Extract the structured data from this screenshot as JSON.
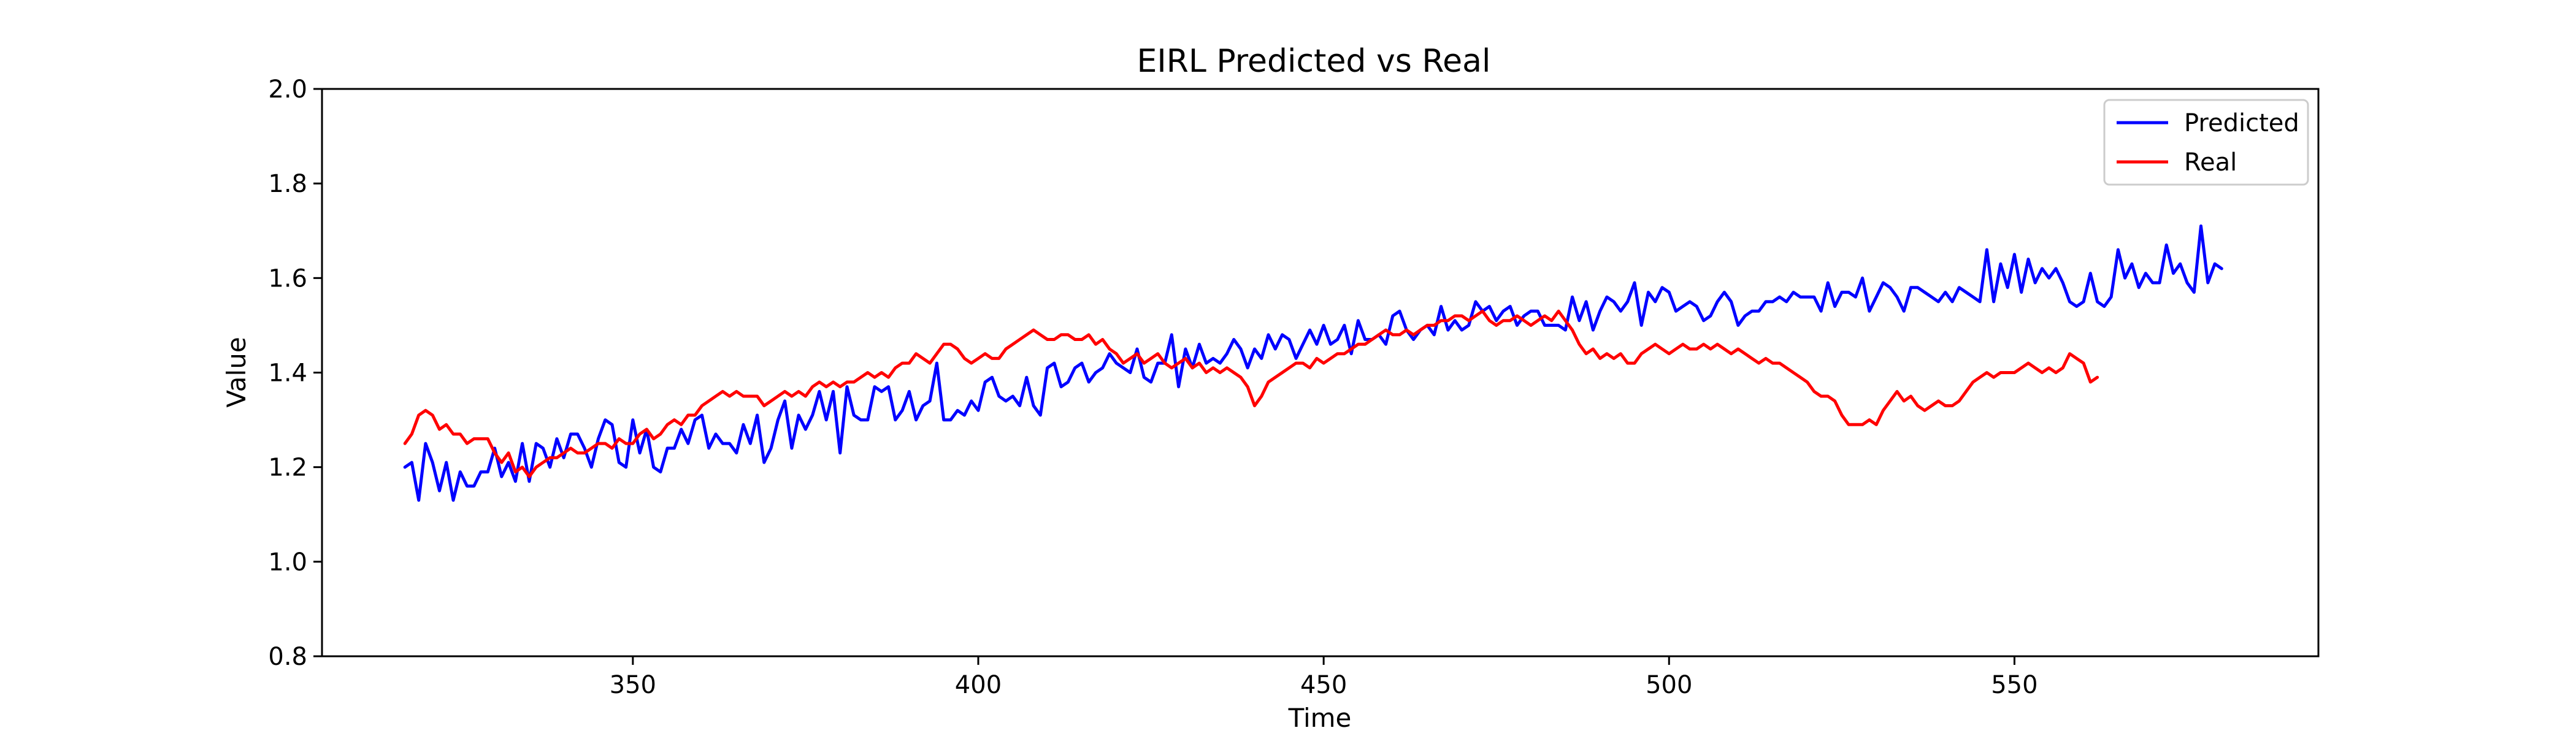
{
  "chart_data": {
    "type": "line",
    "title": "EIRL Predicted vs Real",
    "xlabel": "Time",
    "ylabel": "Value",
    "xlim": [
      305,
      594
    ],
    "ylim": [
      0.8,
      2.0
    ],
    "xticks": [
      350,
      400,
      450,
      500,
      550
    ],
    "yticks": [
      0.8,
      1.0,
      1.2,
      1.4,
      1.6,
      1.8,
      2.0
    ],
    "xtick_labels": [
      "350",
      "400",
      "450",
      "500",
      "550"
    ],
    "ytick_labels": [
      "0.8",
      "1.0",
      "1.2",
      "1.4",
      "1.6",
      "1.8",
      "2.0"
    ],
    "legend_position": "top-right",
    "grid": false,
    "x_start": 317,
    "x_step": 1,
    "series": [
      {
        "name": "Predicted",
        "color": "#0000ff",
        "values": [
          1.2,
          1.21,
          1.13,
          1.25,
          1.21,
          1.15,
          1.21,
          1.13,
          1.19,
          1.16,
          1.16,
          1.19,
          1.19,
          1.24,
          1.18,
          1.21,
          1.17,
          1.25,
          1.17,
          1.25,
          1.24,
          1.2,
          1.26,
          1.22,
          1.27,
          1.27,
          1.24,
          1.2,
          1.26,
          1.3,
          1.29,
          1.21,
          1.2,
          1.3,
          1.23,
          1.28,
          1.2,
          1.19,
          1.24,
          1.24,
          1.28,
          1.25,
          1.3,
          1.31,
          1.24,
          1.27,
          1.25,
          1.25,
          1.23,
          1.29,
          1.25,
          1.31,
          1.21,
          1.24,
          1.3,
          1.34,
          1.24,
          1.31,
          1.28,
          1.31,
          1.36,
          1.3,
          1.36,
          1.23,
          1.37,
          1.31,
          1.3,
          1.3,
          1.37,
          1.36,
          1.37,
          1.3,
          1.32,
          1.36,
          1.3,
          1.33,
          1.34,
          1.42,
          1.3,
          1.3,
          1.32,
          1.31,
          1.34,
          1.32,
          1.38,
          1.39,
          1.35,
          1.34,
          1.35,
          1.33,
          1.39,
          1.33,
          1.31,
          1.41,
          1.42,
          1.37,
          1.38,
          1.41,
          1.42,
          1.38,
          1.4,
          1.41,
          1.44,
          1.42,
          1.41,
          1.4,
          1.45,
          1.39,
          1.38,
          1.42,
          1.42,
          1.48,
          1.37,
          1.45,
          1.41,
          1.46,
          1.42,
          1.43,
          1.42,
          1.44,
          1.47,
          1.45,
          1.41,
          1.45,
          1.43,
          1.48,
          1.45,
          1.48,
          1.47,
          1.43,
          1.46,
          1.49,
          1.46,
          1.5,
          1.46,
          1.47,
          1.5,
          1.44,
          1.51,
          1.47,
          1.47,
          1.48,
          1.46,
          1.52,
          1.53,
          1.49,
          1.47,
          1.49,
          1.5,
          1.48,
          1.54,
          1.49,
          1.51,
          1.49,
          1.5,
          1.55,
          1.53,
          1.54,
          1.51,
          1.53,
          1.54,
          1.5,
          1.52,
          1.53,
          1.53,
          1.5,
          1.5,
          1.5,
          1.49,
          1.56,
          1.51,
          1.55,
          1.49,
          1.53,
          1.56,
          1.55,
          1.53,
          1.55,
          1.59,
          1.5,
          1.57,
          1.55,
          1.58,
          1.57,
          1.53,
          1.54,
          1.55,
          1.54,
          1.51,
          1.52,
          1.55,
          1.57,
          1.55,
          1.5,
          1.52,
          1.53,
          1.53,
          1.55,
          1.55,
          1.56,
          1.55,
          1.57,
          1.56,
          1.56,
          1.56,
          1.53,
          1.59,
          1.54,
          1.57,
          1.57,
          1.56,
          1.6,
          1.53,
          1.56,
          1.59,
          1.58,
          1.56,
          1.53,
          1.58,
          1.58,
          1.57,
          1.56,
          1.55,
          1.57,
          1.55,
          1.58,
          1.57,
          1.56,
          1.55,
          1.66,
          1.55,
          1.63,
          1.58,
          1.65,
          1.57,
          1.64,
          1.59,
          1.62,
          1.6,
          1.62,
          1.59,
          1.55,
          1.54,
          1.55,
          1.61,
          1.55,
          1.54,
          1.56,
          1.66,
          1.6,
          1.63,
          1.58,
          1.61,
          1.59,
          1.59,
          1.67,
          1.61,
          1.63,
          1.59,
          1.57,
          1.71,
          1.59,
          1.63,
          1.62
        ]
      },
      {
        "name": "Real",
        "color": "#ff0000",
        "values": [
          1.25,
          1.27,
          1.31,
          1.32,
          1.31,
          1.28,
          1.29,
          1.27,
          1.27,
          1.25,
          1.26,
          1.26,
          1.26,
          1.23,
          1.21,
          1.23,
          1.19,
          1.2,
          1.18,
          1.2,
          1.21,
          1.22,
          1.22,
          1.23,
          1.24,
          1.23,
          1.23,
          1.24,
          1.25,
          1.25,
          1.24,
          1.26,
          1.25,
          1.25,
          1.27,
          1.28,
          1.26,
          1.27,
          1.29,
          1.3,
          1.29,
          1.31,
          1.31,
          1.33,
          1.34,
          1.35,
          1.36,
          1.35,
          1.36,
          1.35,
          1.35,
          1.35,
          1.33,
          1.34,
          1.35,
          1.36,
          1.35,
          1.36,
          1.35,
          1.37,
          1.38,
          1.37,
          1.38,
          1.37,
          1.38,
          1.38,
          1.39,
          1.4,
          1.39,
          1.4,
          1.39,
          1.41,
          1.42,
          1.42,
          1.44,
          1.43,
          1.42,
          1.44,
          1.46,
          1.46,
          1.45,
          1.43,
          1.42,
          1.43,
          1.44,
          1.43,
          1.43,
          1.45,
          1.46,
          1.47,
          1.48,
          1.49,
          1.48,
          1.47,
          1.47,
          1.48,
          1.48,
          1.47,
          1.47,
          1.48,
          1.46,
          1.47,
          1.45,
          1.44,
          1.42,
          1.43,
          1.44,
          1.42,
          1.43,
          1.44,
          1.42,
          1.41,
          1.42,
          1.43,
          1.41,
          1.42,
          1.4,
          1.41,
          1.4,
          1.41,
          1.4,
          1.39,
          1.37,
          1.33,
          1.35,
          1.38,
          1.39,
          1.4,
          1.41,
          1.42,
          1.42,
          1.41,
          1.43,
          1.42,
          1.43,
          1.44,
          1.44,
          1.45,
          1.46,
          1.46,
          1.47,
          1.48,
          1.49,
          1.48,
          1.48,
          1.49,
          1.48,
          1.49,
          1.5,
          1.5,
          1.51,
          1.51,
          1.52,
          1.52,
          1.51,
          1.52,
          1.53,
          1.51,
          1.5,
          1.51,
          1.51,
          1.52,
          1.51,
          1.5,
          1.51,
          1.52,
          1.51,
          1.53,
          1.51,
          1.49,
          1.46,
          1.44,
          1.45,
          1.43,
          1.44,
          1.43,
          1.44,
          1.42,
          1.42,
          1.44,
          1.45,
          1.46,
          1.45,
          1.44,
          1.45,
          1.46,
          1.45,
          1.45,
          1.46,
          1.45,
          1.46,
          1.45,
          1.44,
          1.45,
          1.44,
          1.43,
          1.42,
          1.43,
          1.42,
          1.42,
          1.41,
          1.4,
          1.39,
          1.38,
          1.36,
          1.35,
          1.35,
          1.34,
          1.31,
          1.29,
          1.29,
          1.29,
          1.3,
          1.29,
          1.32,
          1.34,
          1.36,
          1.34,
          1.35,
          1.33,
          1.32,
          1.33,
          1.34,
          1.33,
          1.33,
          1.34,
          1.36,
          1.38,
          1.39,
          1.4,
          1.39,
          1.4,
          1.4,
          1.4,
          1.41,
          1.42,
          1.41,
          1.4,
          1.41,
          1.4,
          1.41,
          1.44,
          1.43,
          1.42,
          1.38,
          1.39
        ]
      }
    ]
  }
}
